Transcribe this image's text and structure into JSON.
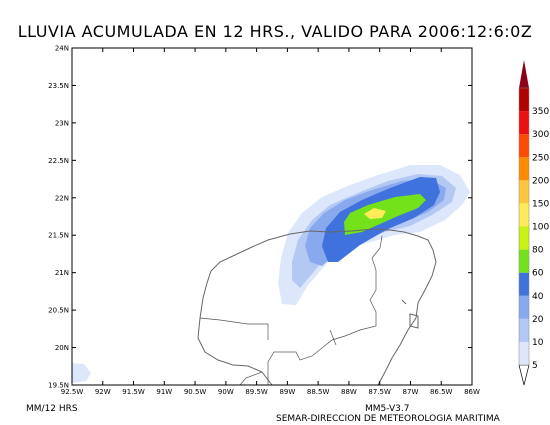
{
  "title": "LLUVIA ACUMULADA EN 12 HRS., VALIDO PARA 2006:12:6:0Z",
  "units_label": "MM/12 HRS",
  "model_label": "MM5-V3.7",
  "source_label": "SEMAR-DIRECCION DE METEOROLOGIA MARITIMA",
  "map": {
    "lat_range": [
      19.5,
      24
    ],
    "lon_range": [
      -92.5,
      -86
    ],
    "lat_ticks": [
      "19.5N",
      "20N",
      "20.5N",
      "21N",
      "21.5N",
      "22N",
      "22.5N",
      "23N",
      "23.5N",
      "24N"
    ],
    "lon_ticks": [
      "92.5W",
      "92W",
      "91.5W",
      "91W",
      "90.5W",
      "90W",
      "89.5W",
      "89W",
      "88.5W",
      "88W",
      "87.5W",
      "87W",
      "86.5W",
      "86W"
    ]
  },
  "colorbar": {
    "levels": [
      "5",
      "10",
      "20",
      "40",
      "60",
      "80",
      "100",
      "150",
      "200",
      "250",
      "300",
      "350"
    ],
    "colors": [
      "#dde7fb",
      "#b3c8f3",
      "#89a9ef",
      "#3f72dc",
      "#73e21a",
      "#c8f214",
      "#ffeb57",
      "#ffc83c",
      "#ff8c00",
      "#ff4b00",
      "#ee1010",
      "#b30000",
      "#8c001a"
    ]
  },
  "rain_colors": {
    "light": "#dde7fb",
    "level10": "#b3c8f3",
    "level20": "#89a9ef",
    "level40": "#3f72dc",
    "level60": "#73e21a",
    "level80": "#ffeb57"
  }
}
